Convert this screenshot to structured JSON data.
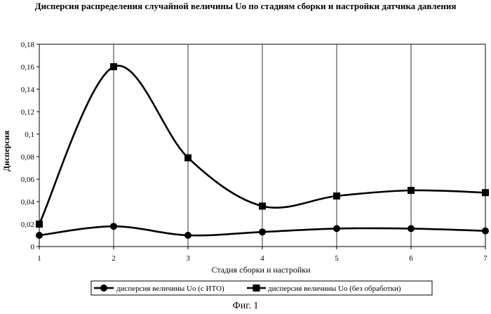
{
  "chart_data": {
    "type": "line",
    "title": "Дисперсия распределения случайной величины Uo по стадиям сборки и настройки датчика давления",
    "xlabel": "Стадия сборки и настройки",
    "ylabel": "Дисперсия",
    "x": [
      1,
      2,
      3,
      4,
      5,
      6,
      7
    ],
    "x_ticks": [
      "1",
      "2",
      "3",
      "4",
      "5",
      "6",
      "7"
    ],
    "ylim": [
      0,
      0.18
    ],
    "y_ticks": [
      "0",
      "0,02",
      "0,04",
      "0,06",
      "0,08",
      "0,1",
      "0,12",
      "0,14",
      "0,16",
      "0,18"
    ],
    "grid": "vertical",
    "legend_position": "bottom",
    "series": [
      {
        "name": "дисперсия величины Uo (с ИТО)",
        "marker": "circle",
        "values": [
          0.01,
          0.018,
          0.01,
          0.013,
          0.016,
          0.016,
          0.014
        ]
      },
      {
        "name": "дисперсия величины Uo (без обработки)",
        "marker": "square",
        "values": [
          0.02,
          0.16,
          0.079,
          0.036,
          0.045,
          0.05,
          0.048
        ]
      }
    ]
  },
  "caption": "Фиг. 1"
}
